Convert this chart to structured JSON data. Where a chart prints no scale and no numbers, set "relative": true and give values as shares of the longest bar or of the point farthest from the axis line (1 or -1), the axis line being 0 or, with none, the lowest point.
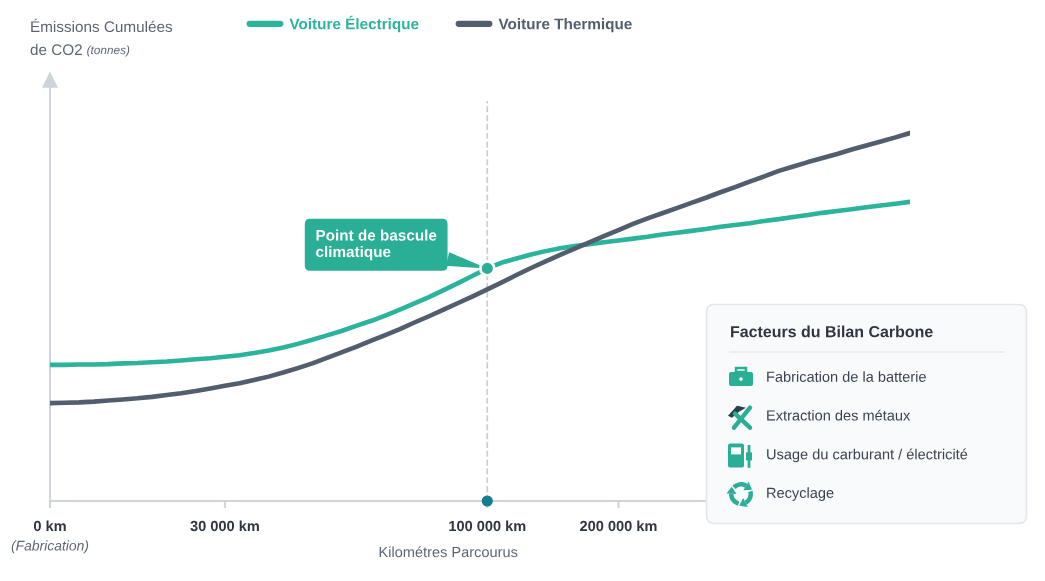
{
  "chart_data": [
    {
      "type": "line",
      "relative": true,
      "xlabel": "Kilométres Parcourus",
      "ylabel": "Émissions Cumulées\nde CO2 (tonnes)",
      "categories": [
        "0 km\n(Fabrication)",
        null,
        null,
        null,
        null,
        null,
        null,
        null,
        null,
        null,
        null,
        null,
        "30 000 km",
        null,
        null,
        null,
        null,
        null,
        null,
        null,
        null,
        null,
        null,
        null,
        null,
        null,
        null,
        null,
        null,
        null,
        "100 000 km",
        null,
        null,
        null,
        null,
        null,
        null,
        null,
        null,
        "200 000 km",
        null,
        null,
        null,
        null,
        null,
        null,
        null,
        null,
        null,
        null,
        null,
        null,
        null,
        null,
        null,
        null,
        null,
        null,
        null,
        null
      ],
      "series": [
        {
          "name": "Voiture Électrique",
          "color": "#2bb39b",
          "values": [
            0.37,
            0.37,
            0.371,
            0.371,
            0.372,
            0.374,
            0.375,
            0.377,
            0.379,
            0.382,
            0.385,
            0.388,
            0.392,
            0.396,
            0.402,
            0.409,
            0.417,
            0.427,
            0.438,
            0.45,
            0.462,
            0.476,
            0.489,
            0.504,
            0.52,
            0.537,
            0.554,
            0.573,
            0.592,
            0.612,
            0.632,
            0.648,
            0.659,
            0.67,
            0.679,
            0.687,
            0.693,
            0.698,
            0.703,
            0.708,
            0.713,
            0.718,
            0.724,
            0.729,
            0.734,
            0.739,
            0.745,
            0.75,
            0.755,
            0.761,
            0.766,
            0.772,
            0.777,
            0.783,
            0.788,
            0.793,
            0.798,
            0.803,
            0.808,
            0.813
          ]
        },
        {
          "name": "Voiture Thermique",
          "color": "#525d6e",
          "values": [
            0.266,
            0.267,
            0.268,
            0.27,
            0.273,
            0.276,
            0.279,
            0.283,
            0.288,
            0.293,
            0.299,
            0.306,
            0.313,
            0.32,
            0.329,
            0.338,
            0.349,
            0.361,
            0.374,
            0.389,
            0.404,
            0.419,
            0.435,
            0.451,
            0.467,
            0.485,
            0.502,
            0.52,
            0.538,
            0.556,
            0.575,
            0.594,
            0.614,
            0.633,
            0.651,
            0.669,
            0.686,
            0.703,
            0.72,
            0.736,
            0.753,
            0.768,
            0.782,
            0.796,
            0.81,
            0.824,
            0.839,
            0.853,
            0.868,
            0.882,
            0.897,
            0.909,
            0.921,
            0.932,
            0.943,
            0.955,
            0.966,
            0.977,
            0.988,
            1
          ]
        }
      ],
      "ref_lines": [
        {
          "axis": "x",
          "value": "100 000 km",
          "color": "#c8cdd3",
          "line_style": "dashed"
        }
      ],
      "annotations": [
        {
          "text": "Point de bascule\nclimatique",
          "x": "100 000 km",
          "y": 0.632
        }
      ],
      "legend": "top",
      "tick_labels": "x",
      "marker": "none",
      "line_style": "solid"
    },
    {
      "type": "other",
      "title": "Facteurs du Bilan Carbone",
      "annotations": [
        "Fabrication de la batterie",
        "Extraction des métaux",
        "Usage du carburant / électricité",
        "Recyclage"
      ]
    }
  ]
}
